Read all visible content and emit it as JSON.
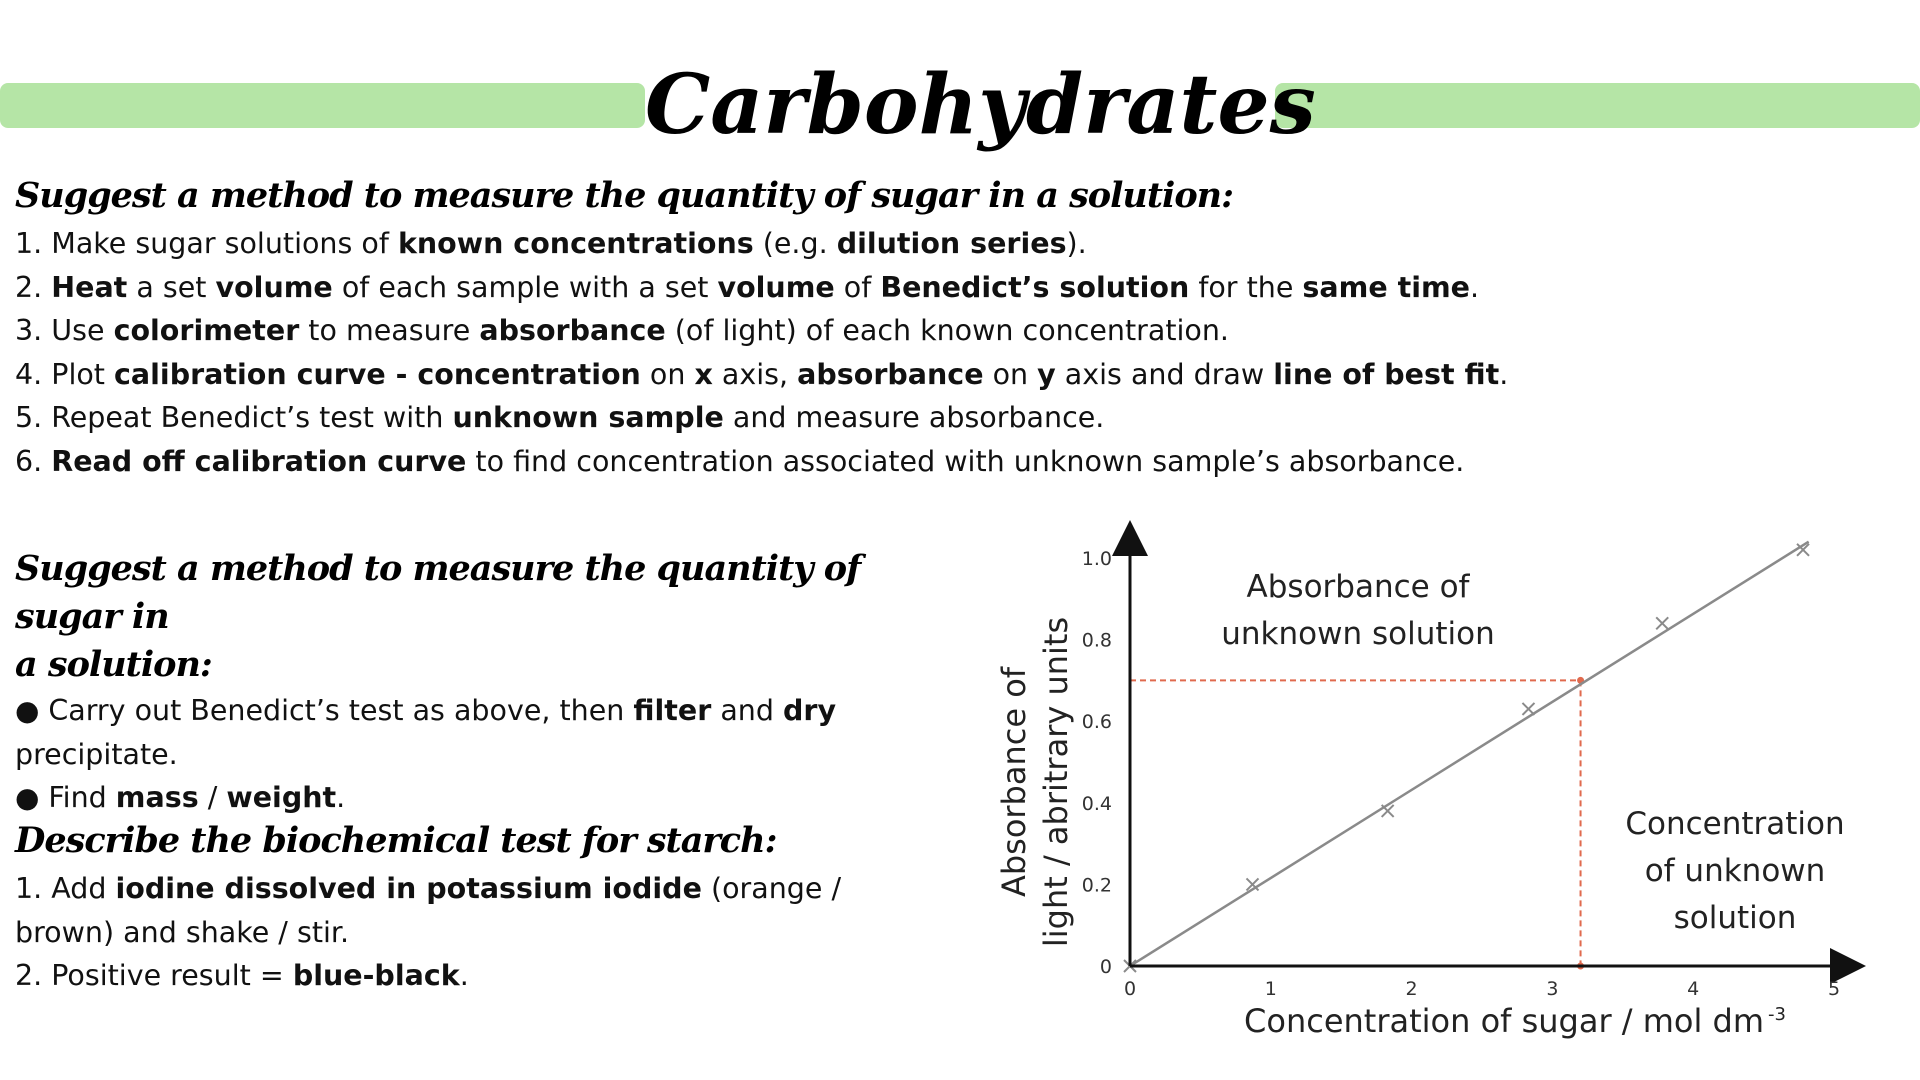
{
  "title": "Carbohydrates",
  "section1": {
    "heading": "Suggest a method to measure the quantity of sugar in a solution:",
    "lines": [
      [
        {
          "t": "1. Make sugar solutions of "
        },
        {
          "t": "known concentrations",
          "b": true
        },
        {
          "t": " (e.g. "
        },
        {
          "t": "dilution series",
          "b": true
        },
        {
          "t": ")."
        }
      ],
      [
        {
          "t": "2. "
        },
        {
          "t": "Heat",
          "b": true
        },
        {
          "t": " a set "
        },
        {
          "t": "volume",
          "b": true
        },
        {
          "t": " of each sample with a set "
        },
        {
          "t": "volume",
          "b": true
        },
        {
          "t": " of "
        },
        {
          "t": "Benedict’s solution",
          "b": true
        },
        {
          "t": " for the "
        },
        {
          "t": "same time",
          "b": true
        },
        {
          "t": "."
        }
      ],
      [
        {
          "t": "3. Use "
        },
        {
          "t": "colorimeter",
          "b": true
        },
        {
          "t": " to measure "
        },
        {
          "t": "absorbance",
          "b": true
        },
        {
          "t": " (of light) of each known concentration."
        }
      ],
      [
        {
          "t": "4. Plot "
        },
        {
          "t": "calibration curve - concentration",
          "b": true
        },
        {
          "t": " on "
        },
        {
          "t": "x",
          "b": true
        },
        {
          "t": " axis, "
        },
        {
          "t": "absorbance",
          "b": true
        },
        {
          "t": " on "
        },
        {
          "t": "y",
          "b": true
        },
        {
          "t": " axis and draw "
        },
        {
          "t": "line of best fit",
          "b": true
        },
        {
          "t": "."
        }
      ],
      [
        {
          "t": "5. Repeat Benedict’s test with "
        },
        {
          "t": "unknown sample",
          "b": true
        },
        {
          "t": " and measure absorbance."
        }
      ],
      [
        {
          "t": "6. "
        },
        {
          "t": "Read off calibration curve",
          "b": true
        },
        {
          "t": " to find concentration associated with unknown sample’s absorbance."
        }
      ]
    ]
  },
  "section2": {
    "heading_line1": "Suggest a method to measure the quantity of sugar in",
    "heading_line2": "a solution:",
    "bullet_symbol": "●",
    "lines": [
      [
        {
          "t": "● ",
          "k": "bullet"
        },
        {
          "t": "Carry out Benedict’s test as above, then "
        },
        {
          "t": "filter",
          "b": true
        },
        {
          "t": " and "
        },
        {
          "t": "dry",
          "b": true
        }
      ],
      [
        {
          "t": "precipitate."
        }
      ],
      [
        {
          "t": "● ",
          "k": "bullet"
        },
        {
          "t": "Find "
        },
        {
          "t": "mass",
          "b": true
        },
        {
          "t": " / "
        },
        {
          "t": "weight",
          "b": true
        },
        {
          "t": "."
        }
      ]
    ]
  },
  "section3": {
    "heading": "Describe the biochemical test for starch:",
    "lines": [
      [
        {
          "t": "1. Add "
        },
        {
          "t": "iodine dissolved in potassium iodide",
          "b": true
        },
        {
          "t": " (orange /"
        }
      ],
      [
        {
          "t": "brown) and shake / stir."
        }
      ],
      [
        {
          "t": "2. Positive result = "
        },
        {
          "t": "blue-black",
          "b": true
        },
        {
          "t": "."
        }
      ]
    ]
  },
  "chart_data": {
    "type": "scatter",
    "xlabel": "Concentration of sugar / mol dm",
    "xlabel_superscript": "-3",
    "ylabel_line1": "Absorbance of",
    "ylabel_line2": "light / abritrary units",
    "xlim": [
      0,
      5
    ],
    "ylim": [
      0,
      1.0
    ],
    "x_ticks": [
      "0",
      "1",
      "2",
      "3",
      "4",
      "5"
    ],
    "y_ticks": [
      "0",
      "0.2",
      "0.4",
      "0.6",
      "0.8",
      "1.0"
    ],
    "points": [
      {
        "x": 0,
        "y": 0
      },
      {
        "x": 0.87,
        "y": 0.2
      },
      {
        "x": 1.83,
        "y": 0.38
      },
      {
        "x": 2.83,
        "y": 0.63
      },
      {
        "x": 3.78,
        "y": 0.84
      },
      {
        "x": 4.78,
        "y": 1.02
      }
    ],
    "best_fit": {
      "x1": 0,
      "y1": 0,
      "x2": 4.82,
      "y2": 1.04
    },
    "unknown": {
      "x": 3.2,
      "y": 0.7
    },
    "annotations": {
      "absorbance_line1": "Absorbance of",
      "absorbance_line2": "unknown solution",
      "concentration_line1": "Concentration",
      "concentration_line2": "of unknown",
      "concentration_line3": "solution"
    },
    "colors": {
      "line": "#8a8a8a",
      "point": "#8a8a8a",
      "guide": "#e06a4e",
      "axis": "#111111"
    },
    "grid": false
  }
}
